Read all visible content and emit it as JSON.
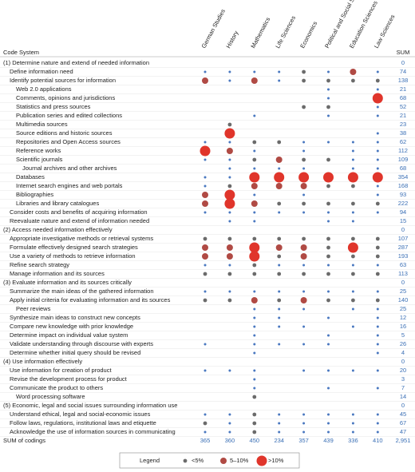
{
  "header": {
    "code_system": "Code System",
    "sum": "SUM"
  },
  "columns": [
    "German Studies",
    "History",
    "Mathematics",
    "Life Sciences",
    "Economics",
    "Political and Social Sciences",
    "Education Sciences",
    "Law Sciences"
  ],
  "rows": [
    {
      "label": "(1) Determine nature and extend of needed information",
      "level": 0,
      "cells": [
        0,
        0,
        0,
        0,
        0,
        0,
        0,
        0
      ],
      "sum": 0
    },
    {
      "label": "Define information need",
      "level": 1,
      "cells": [
        1,
        1,
        1,
        1,
        2,
        1,
        3,
        1
      ],
      "sum": 74
    },
    {
      "label": "Identify potential sources for information",
      "level": 1,
      "cells": [
        3,
        1,
        3,
        1,
        2,
        2,
        2,
        2
      ],
      "sum": 138
    },
    {
      "label": "Web 2.0 applications",
      "level": 2,
      "cells": [
        0,
        0,
        0,
        0,
        0,
        1,
        0,
        1
      ],
      "sum": 21
    },
    {
      "label": "Comments, opinions and jurisdictions",
      "level": 2,
      "cells": [
        0,
        0,
        0,
        0,
        0,
        1,
        0,
        4
      ],
      "sum": 68
    },
    {
      "label": "Statistics and press sources",
      "level": 2,
      "cells": [
        0,
        0,
        0,
        0,
        2,
        2,
        0,
        1
      ],
      "sum": 52
    },
    {
      "label": "Publication series and edited collections",
      "level": 2,
      "cells": [
        0,
        0,
        1,
        0,
        0,
        1,
        0,
        1
      ],
      "sum": 21
    },
    {
      "label": "Multimedia sources",
      "level": 2,
      "cells": [
        0,
        2,
        0,
        0,
        0,
        0,
        0,
        0
      ],
      "sum": 23
    },
    {
      "label": "Source editions and historic sources",
      "level": 2,
      "cells": [
        0,
        4,
        0,
        0,
        0,
        0,
        0,
        1
      ],
      "sum": 38
    },
    {
      "label": "Repositories and Open Access sources",
      "level": 2,
      "cells": [
        1,
        1,
        2,
        2,
        1,
        1,
        1,
        1
      ],
      "sum": 62
    },
    {
      "label": "Reference works",
      "level": 2,
      "cells": [
        4,
        3,
        1,
        0,
        1,
        0,
        1,
        1
      ],
      "sum": 112
    },
    {
      "label": "Scientific journals",
      "level": 2,
      "cells": [
        1,
        1,
        2,
        3,
        2,
        2,
        1,
        1
      ],
      "sum": 109
    },
    {
      "label": "Journal archives and other archives",
      "level": 3,
      "cells": [
        0,
        1,
        1,
        1,
        1,
        0,
        1,
        1
      ],
      "sum": 68
    },
    {
      "label": "Databases",
      "level": 2,
      "cells": [
        1,
        1,
        4,
        4,
        4,
        4,
        4,
        4
      ],
      "sum": 354
    },
    {
      "label": "Internet search engines and web portals",
      "level": 2,
      "cells": [
        1,
        2,
        3,
        3,
        3,
        2,
        2,
        1
      ],
      "sum": 168
    },
    {
      "label": "Bibliographies",
      "level": 2,
      "cells": [
        3,
        4,
        1,
        0,
        1,
        0,
        0,
        1
      ],
      "sum": 93
    },
    {
      "label": "Libraries and library catalogues",
      "level": 2,
      "cells": [
        3,
        4,
        3,
        2,
        2,
        2,
        2,
        2
      ],
      "sum": 222
    },
    {
      "label": "Consider costs and benefits of acquiring information",
      "level": 1,
      "cells": [
        1,
        1,
        1,
        1,
        1,
        1,
        1,
        1
      ],
      "sum": 94
    },
    {
      "label": "Reevaluate nature and extend of information needed",
      "level": 1,
      "cells": [
        0,
        1,
        1,
        0,
        0,
        1,
        1,
        0
      ],
      "sum": 15
    },
    {
      "label": "(2) Access needed information effectively",
      "level": 0,
      "cells": [
        0,
        0,
        0,
        0,
        0,
        0,
        0,
        0
      ],
      "sum": 0
    },
    {
      "label": "Appropriate investigative methods or retrieval systems",
      "level": 1,
      "cells": [
        2,
        2,
        2,
        2,
        2,
        2,
        2,
        2
      ],
      "sum": 107
    },
    {
      "label": "Formulate effectively designed search strategies",
      "level": 1,
      "cells": [
        3,
        3,
        4,
        3,
        3,
        2,
        4,
        2
      ],
      "sum": 287
    },
    {
      "label": "Use a variety of methods to retrieve information",
      "level": 1,
      "cells": [
        3,
        3,
        4,
        2,
        3,
        2,
        2,
        2
      ],
      "sum": 193
    },
    {
      "label": "Refine search strategy",
      "level": 1,
      "cells": [
        1,
        1,
        2,
        1,
        1,
        1,
        1,
        1
      ],
      "sum": 63
    },
    {
      "label": "Manage information and its sources",
      "level": 1,
      "cells": [
        2,
        2,
        2,
        2,
        2,
        2,
        2,
        2
      ],
      "sum": 113
    },
    {
      "label": "(3) Evaluate information and its sources critically",
      "level": 0,
      "cells": [
        0,
        0,
        0,
        0,
        0,
        0,
        0,
        0
      ],
      "sum": 0
    },
    {
      "label": "Summarize the main ideas of the gathered information",
      "level": 1,
      "cells": [
        1,
        1,
        1,
        1,
        1,
        1,
        1,
        1
      ],
      "sum": 25
    },
    {
      "label": "Apply initial criteria for evaluating information and its sources",
      "level": 1,
      "cells": [
        2,
        2,
        3,
        2,
        3,
        2,
        2,
        2
      ],
      "sum": 140
    },
    {
      "label": "Peer reviews",
      "level": 2,
      "cells": [
        0,
        0,
        1,
        1,
        1,
        0,
        1,
        1
      ],
      "sum": 25
    },
    {
      "label": "Synthesize main ideas to construct new concepts",
      "level": 1,
      "cells": [
        0,
        0,
        1,
        1,
        0,
        1,
        0,
        1
      ],
      "sum": 12
    },
    {
      "label": "Compare new knowledge with prior knowledge",
      "level": 1,
      "cells": [
        0,
        0,
        1,
        1,
        1,
        0,
        1,
        1
      ],
      "sum": 16
    },
    {
      "label": "Determine impact on individual value system",
      "level": 1,
      "cells": [
        0,
        0,
        1,
        0,
        0,
        1,
        0,
        1
      ],
      "sum": 5
    },
    {
      "label": "Validate understanding through discourse with experts",
      "level": 1,
      "cells": [
        1,
        0,
        1,
        1,
        1,
        1,
        0,
        1
      ],
      "sum": 26
    },
    {
      "label": "Determine whether initial query should be revised",
      "level": 1,
      "cells": [
        0,
        0,
        1,
        0,
        0,
        0,
        0,
        1
      ],
      "sum": 4
    },
    {
      "label": "(4) Use information effectively",
      "level": 0,
      "cells": [
        0,
        0,
        0,
        0,
        0,
        0,
        0,
        0
      ],
      "sum": 0
    },
    {
      "label": "Use information for creation of product",
      "level": 1,
      "cells": [
        1,
        1,
        1,
        0,
        1,
        1,
        1,
        1
      ],
      "sum": 20
    },
    {
      "label": "Revise the development process for product",
      "level": 1,
      "cells": [
        0,
        0,
        1,
        0,
        0,
        0,
        0,
        0
      ],
      "sum": 3
    },
    {
      "label": "Communicate the product to others",
      "level": 1,
      "cells": [
        0,
        0,
        1,
        0,
        0,
        1,
        0,
        1
      ],
      "sum": 7
    },
    {
      "label": "Word processing software",
      "level": 2,
      "cells": [
        0,
        0,
        2,
        0,
        0,
        0,
        0,
        0
      ],
      "sum": 14
    },
    {
      "label": "(5) Economic, legal and social issues surrounding information use",
      "level": 0,
      "cells": [
        0,
        0,
        0,
        0,
        0,
        0,
        0,
        0
      ],
      "sum": 0
    },
    {
      "label": "Understand ethical, legal and social-economic issues",
      "level": 1,
      "cells": [
        1,
        1,
        2,
        1,
        1,
        1,
        1,
        1
      ],
      "sum": 45
    },
    {
      "label": "Follow laws, regulations, institutional laws and etiquette",
      "level": 1,
      "cells": [
        2,
        1,
        2,
        1,
        1,
        1,
        1,
        1
      ],
      "sum": 67
    },
    {
      "label": "Acknowledge the use of information sources in communicating",
      "level": 1,
      "cells": [
        1,
        1,
        2,
        1,
        1,
        1,
        1,
        1
      ],
      "sum": 47
    }
  ],
  "sum_row": {
    "label": "SUM of codings",
    "values": [
      365,
      360,
      450,
      234,
      357,
      439,
      336,
      410
    ],
    "total": "2,951"
  },
  "legend": {
    "title": "Legend",
    "items": [
      {
        "level": 2,
        "label": "<5%"
      },
      {
        "level": 3,
        "label": "5–10%"
      },
      {
        "level": 4,
        "label": ">10%"
      }
    ]
  }
}
